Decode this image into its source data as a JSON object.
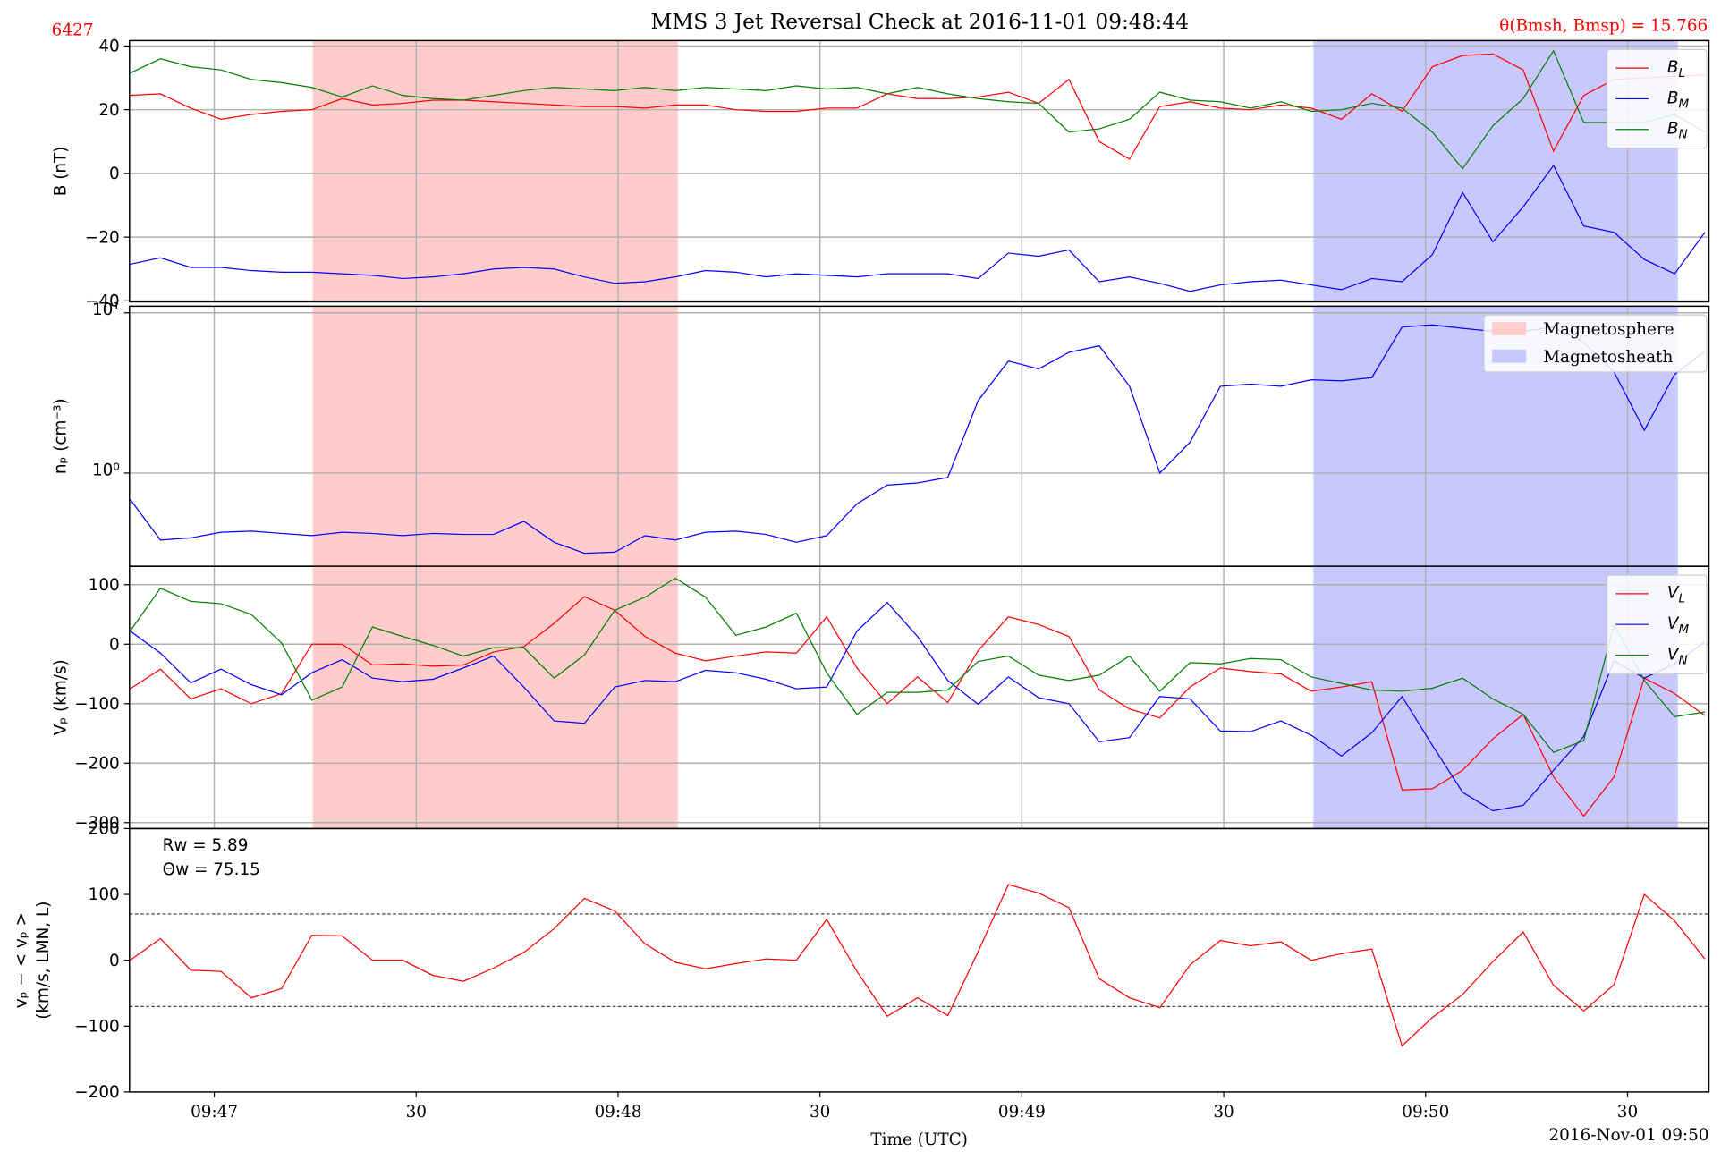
{
  "title": "MMS 3 Jet Reversal Check at 2016-11-01 09:48:44",
  "label_left": "6427",
  "label_right": "θ(Bmsh, Bmsp) = 15.766",
  "chart_data": [
    {
      "type": "line",
      "ylabel": "B (nT)",
      "grid": true,
      "shaded": true,
      "legend": "upper right",
      "xlim": [
        47.4,
        282.1
      ],
      "ylim": [
        -40.3,
        41.7
      ],
      "yticks": [
        {
          "value": -40,
          "label": "−40"
        },
        {
          "value": -20,
          "label": "−20"
        },
        0,
        20,
        40
      ],
      "spans": [
        {
          "name": "Magnetosphere",
          "color": "#ffcccc",
          "range": [
            74.7,
            128.8
          ]
        },
        {
          "name": "Magnetosheath",
          "color": "#c8c8ff",
          "range": [
            223.4,
            277.4
          ]
        }
      ],
      "x": [
        47.5,
        52,
        56.5,
        61,
        65.5,
        70,
        74.5,
        79,
        83.5,
        88,
        92.5,
        97,
        101.5,
        106,
        110.5,
        115,
        119.5,
        124,
        128.5,
        133,
        137.5,
        142,
        146.5,
        151,
        155.5,
        160,
        164.5,
        169,
        173.5,
        178,
        182.5,
        187,
        191.5,
        196,
        200.5,
        205,
        209.5,
        214,
        218.5,
        223,
        227.5,
        232,
        236.5,
        241,
        245.5,
        250,
        254.5,
        259,
        263.5,
        268,
        272.5,
        277,
        281.5
      ],
      "series": [
        {
          "name": "BL",
          "color": "#ff0000",
          "values": [
            24.5,
            25,
            20.5,
            17,
            18.5,
            19.5,
            20,
            23.5,
            21.5,
            22,
            23,
            23,
            22.5,
            22,
            21.5,
            21,
            21,
            20.5,
            21.5,
            21.5,
            20,
            19.5,
            19.5,
            20.5,
            20.5,
            25,
            23.5,
            23.5,
            24,
            25.5,
            22,
            29.5,
            10,
            4.5,
            21,
            22.5,
            20.5,
            20,
            21.5,
            20.5,
            17,
            25,
            19.5,
            33.5,
            37,
            37.5,
            32.5,
            7,
            24.5,
            29.5,
            30,
            30.5,
            31
          ]
        },
        {
          "name": "BM",
          "color": "#0000ff",
          "values": [
            -28.5,
            -26.5,
            -29.5,
            -29.5,
            -30.5,
            -31,
            -31,
            -31.5,
            -32,
            -33,
            -32.5,
            -31.5,
            -30,
            -29.5,
            -30,
            -32.5,
            -34.5,
            -34,
            -32.5,
            -30.5,
            -31,
            -32.5,
            -31.5,
            -32,
            -32.5,
            -31.5,
            -31.5,
            -31.5,
            -33,
            -25,
            -26,
            -24,
            -34,
            -32.5,
            -34.5,
            -37,
            -35,
            -34,
            -33.5,
            -35,
            -36.5,
            -33,
            -34,
            -25.5,
            -6,
            -21.5,
            -10.5,
            2.5,
            -16.5,
            -18.5,
            -27,
            -31.5,
            -18.5
          ]
        },
        {
          "name": "BN",
          "color": "#008000",
          "values": [
            31.5,
            36,
            33.5,
            32.5,
            29.5,
            28.5,
            27,
            24,
            27.5,
            24.5,
            23.5,
            23,
            24.5,
            26,
            27,
            26.5,
            26,
            27,
            26,
            27,
            26.5,
            26,
            27.5,
            26.5,
            27,
            25,
            27,
            25,
            23.5,
            22.5,
            22,
            13,
            14,
            17,
            25.5,
            23,
            22.5,
            20.5,
            22.5,
            19.5,
            20,
            22,
            20.5,
            13,
            1.5,
            15,
            23.5,
            38.5,
            16,
            16,
            16,
            18.5,
            13
          ]
        }
      ]
    },
    {
      "type": "line",
      "ylabel": "nₚ (cm⁻³)",
      "grid": true,
      "shaded": true,
      "log": true,
      "xlim": [
        47.4,
        282.1
      ],
      "ylim": [
        0.262,
        11.0
      ],
      "yticks": [
        {
          "value": 1,
          "label": "10⁰"
        },
        {
          "value": 10,
          "label": "10¹"
        }
      ],
      "x": [
        47.5,
        52,
        56.5,
        61,
        65.5,
        70,
        74.5,
        79,
        83.5,
        88,
        92.5,
        97,
        101.5,
        106,
        110.5,
        115,
        119.5,
        124,
        128.5,
        133,
        137.5,
        142,
        146.5,
        151,
        155.5,
        160,
        164.5,
        169,
        173.5,
        178,
        182.5,
        187,
        191.5,
        196,
        200.5,
        205,
        209.5,
        214,
        218.5,
        223,
        227.5,
        232,
        236.5,
        241,
        245.5,
        250,
        254.5,
        259,
        263.5,
        268,
        272.5,
        277,
        281.5
      ],
      "series": [
        {
          "color": "#0000ff",
          "values": [
            0.685,
            0.382,
            0.394,
            0.427,
            0.434,
            0.42,
            0.407,
            0.427,
            0.42,
            0.407,
            0.42,
            0.414,
            0.414,
            0.5,
            0.37,
            0.316,
            0.321,
            0.407,
            0.382,
            0.427,
            0.434,
            0.414,
            0.37,
            0.407,
            0.643,
            0.841,
            0.868,
            0.939,
            2.83,
            5.0,
            4.47,
            5.67,
            6.23,
            3.48,
            1.0,
            1.56,
            3.48,
            3.59,
            3.48,
            3.82,
            3.76,
            3.94,
            8.15,
            8.41,
            8.0,
            7.66,
            7.66,
            8.15,
            6.53,
            4.27,
            1.85,
            4.13,
            5.76
          ]
        }
      ]
    },
    {
      "type": "line",
      "ylabel": "Vₚ (km/s)",
      "grid": true,
      "shaded": true,
      "legend": "upper right",
      "xlim": [
        47.4,
        282.1
      ],
      "ylim": [
        -310,
        131
      ],
      "yticks": [
        {
          "value": -300,
          "label": "−300"
        },
        {
          "value": -200,
          "label": "−200"
        },
        {
          "value": -100,
          "label": "−100"
        },
        0,
        100
      ],
      "x": [
        47.5,
        52,
        56.5,
        61,
        65.5,
        70,
        74.5,
        79,
        83.5,
        88,
        92.5,
        97,
        101.5,
        106,
        110.5,
        115,
        119.5,
        124,
        128.5,
        133,
        137.5,
        142,
        146.5,
        151,
        155.5,
        160,
        164.5,
        169,
        173.5,
        178,
        182.5,
        187,
        191.5,
        196,
        200.5,
        205,
        209.5,
        214,
        218.5,
        223,
        227.5,
        232,
        236.5,
        241,
        245.5,
        250,
        254.5,
        259,
        263.5,
        268,
        272.5,
        277,
        281.5
      ],
      "series": [
        {
          "name": "VL",
          "color": "#ff0000",
          "values": [
            -75,
            -42,
            -92,
            -75,
            -100,
            -83,
            0,
            0,
            -35,
            -33,
            -37,
            -35,
            -13,
            -4,
            35,
            80,
            57,
            13,
            -15,
            -28,
            -20,
            -13,
            -15,
            46,
            -40,
            -100,
            -55,
            -98,
            -11,
            46,
            33,
            13,
            -77,
            -109,
            -124,
            -72,
            -40,
            -46,
            -50,
            -79,
            -72,
            -63,
            -245,
            -243,
            -212,
            -159,
            -118,
            -223,
            -289,
            -223,
            -57,
            -83,
            -120
          ]
        },
        {
          "name": "VM",
          "color": "#0000ff",
          "values": [
            22,
            -15,
            -65,
            -42,
            -68,
            -85,
            -48,
            -26,
            -57,
            -63,
            -59,
            -40,
            -20,
            -72,
            -129,
            -133,
            -72,
            -61,
            -63,
            -44,
            -48,
            -59,
            -75,
            -72,
            22,
            70,
            13,
            -61,
            -101,
            -55,
            -90,
            -100,
            -164,
            -157,
            -88,
            -92,
            -146,
            -147,
            -129,
            -153,
            -188,
            -149,
            -88,
            -170,
            -249,
            -280,
            -271,
            -212,
            -155,
            -28,
            -57,
            -33,
            4
          ]
        },
        {
          "name": "VN",
          "color": "#008000",
          "values": [
            22,
            94,
            72,
            68,
            50,
            2,
            -94,
            -72,
            29,
            13,
            -2,
            -20,
            -6,
            -6,
            -57,
            -18,
            57,
            79,
            111,
            79,
            15,
            29,
            52,
            -48,
            -118,
            -81,
            -81,
            -77,
            -29,
            -20,
            -52,
            -61,
            -52,
            -20,
            -79,
            -31,
            -33,
            -24,
            -26,
            -55,
            -66,
            -77,
            -79,
            -74,
            -57,
            -92,
            -118,
            -182,
            -162,
            33,
            -61,
            -122,
            -114
          ]
        }
      ]
    },
    {
      "type": "line",
      "ylabel": [
        "vₚ − < vₚ >",
        "(km/s, LMN, L)"
      ],
      "xlabel": "Time (UTC)",
      "offset_label": "2016-Nov-01 09:50",
      "annotations": [
        "Rw = 5.89",
        "Θw = 75.15"
      ],
      "xlim": [
        47.4,
        282.1
      ],
      "ylim": [
        -200,
        200
      ],
      "xticks": [
        {
          "value": 60,
          "label": "09:47"
        },
        {
          "value": 90,
          "label": "30"
        },
        {
          "value": 120,
          "label": "09:48"
        },
        {
          "value": 150,
          "label": "30"
        },
        {
          "value": 180,
          "label": "09:49"
        },
        {
          "value": 210,
          "label": "30"
        },
        {
          "value": 240,
          "label": "09:50"
        },
        {
          "value": 270,
          "label": "30"
        }
      ],
      "yticks": [
        {
          "value": -200,
          "label": "−200"
        },
        {
          "value": -100,
          "label": "−100"
        },
        0,
        100,
        200
      ],
      "hlines": [
        70.2,
        -70.2
      ],
      "x": [
        47.5,
        52,
        56.5,
        61,
        65.5,
        70,
        74.5,
        79,
        83.5,
        88,
        92.5,
        97,
        101.5,
        106,
        110.5,
        115,
        119.5,
        124,
        128.5,
        133,
        137.5,
        142,
        146.5,
        151,
        155.5,
        160,
        164.5,
        169,
        173.5,
        178,
        182.5,
        187,
        191.5,
        196,
        200.5,
        205,
        209.5,
        214,
        218.5,
        223,
        227.5,
        232,
        236.5,
        241,
        245.5,
        250,
        254.5,
        259,
        263.5,
        268,
        272.5,
        277,
        281.5
      ],
      "series": [
        {
          "color": "#ff0000",
          "values": [
            0,
            33,
            -15,
            -17,
            -57,
            -43,
            38,
            37,
            0,
            0,
            -23,
            -32,
            -12,
            12,
            48,
            94,
            75,
            25,
            -3,
            -13,
            -5,
            2,
            0,
            62,
            -17,
            -85,
            -57,
            -84,
            13,
            115,
            102,
            80,
            -28,
            -57,
            -72,
            -7,
            30,
            22,
            28,
            0,
            10,
            17,
            -130,
            -87,
            -52,
            -2,
            43,
            -38,
            -77,
            -37,
            100,
            60,
            2
          ]
        }
      ]
    }
  ]
}
